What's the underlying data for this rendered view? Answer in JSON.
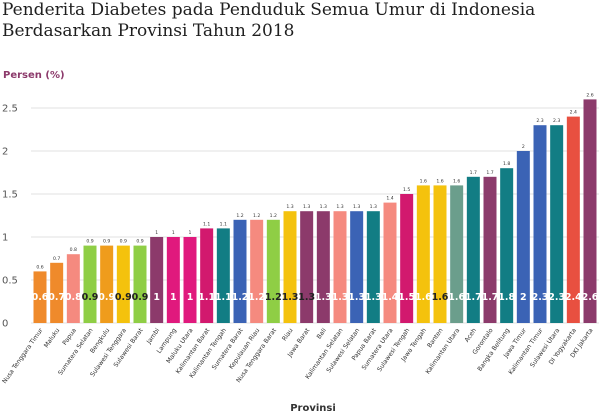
{
  "title": {
    "line1": "Penderita Diabetes pada Penduduk Semua Umur di Indonesia",
    "line2": "Berdasarkan Provinsi Tahun 2018"
  },
  "colors": {
    "accent": "#8c3a6b",
    "grid": "#e2e2e2"
  },
  "chart_data": {
    "type": "bar",
    "ylabel": "Persen (%)",
    "xlabel": "Provinsi",
    "ylim": [
      0,
      2.7
    ],
    "yticks": [
      0,
      0.5,
      1,
      1.5,
      2,
      2.5
    ],
    "ytick_labels": [
      "0",
      "0.5",
      "1",
      "1.5",
      "2",
      "2.5"
    ],
    "grid": true,
    "categories": [
      "Nusa Tenggara Timur",
      "Maluku",
      "Papua",
      "Sumatera Selatan",
      "Bengkulu",
      "Sulawesi Tenggara",
      "Sulawesi Barat",
      "Jambi",
      "Lampung",
      "Maluku Utara",
      "Kalimantan Barat",
      "Kalimantan Tengah",
      "Sumatera Barat",
      "Kepulauan Riau",
      "Nusa Tenggara Barat",
      "Riau",
      "Jawa Barat",
      "Bali",
      "Kalimantan Selatan",
      "Sulawesi Selatan",
      "Papua Barat",
      "Sumatera Utara",
      "Sulawesi Tengah",
      "Jawa Tengah",
      "Banten",
      "Kalimantan Utara",
      "Aceh",
      "Gorontalo",
      "Bangka Belitung",
      "Jawa Timur",
      "Kalimantan Timur",
      "Sulawesi Utara",
      "DI Yogyakarta",
      "DKI Jakarta"
    ],
    "values": [
      0.6,
      0.7,
      0.8,
      0.9,
      0.9,
      0.9,
      0.9,
      1,
      1,
      1,
      1.1,
      1.1,
      1.2,
      1.2,
      1.2,
      1.3,
      1.3,
      1.3,
      1.3,
      1.3,
      1.3,
      1.4,
      1.5,
      1.6,
      1.6,
      1.6,
      1.7,
      1.7,
      1.8,
      2,
      2.3,
      2.3,
      2.4,
      2.6
    ],
    "colors": [
      "#ef8a2b",
      "#ef8a2b",
      "#f58a7f",
      "#8fce45",
      "#ef9c1c",
      "#f4c20d",
      "#8fce45",
      "#8c3a6b",
      "#e0197d",
      "#e0197d",
      "#d2196e",
      "#127d84",
      "#3b63b5",
      "#f58a7f",
      "#8fce45",
      "#f4c20d",
      "#8c3a6b",
      "#8c3a6b",
      "#f58a7f",
      "#3b63b5",
      "#127d84",
      "#f58a7f",
      "#d2196e",
      "#f4c20d",
      "#f4c20d",
      "#6b9e8c",
      "#127d84",
      "#8c3a6b",
      "#127d84",
      "#3b63b5",
      "#3b63b5",
      "#127d84",
      "#e85040",
      "#8c3a6b"
    ],
    "labels_top": [
      "0.6",
      "0.7",
      "0.8",
      "0.9",
      "0.9",
      "0.9",
      "0.9",
      "1",
      "1",
      "1",
      "1.1",
      "1.1",
      "1.2",
      "1.2",
      "1.2",
      "1.3",
      "1.3",
      "1.3",
      "1.3",
      "1.3",
      "1.3",
      "1.4",
      "1.5",
      "1.6",
      "1.6",
      "1.6",
      "1.7",
      "1.7",
      "1.8",
      "2",
      "2.3",
      "2.3",
      "2.4",
      "2.6"
    ],
    "labels_inside": [
      "0.6",
      "0.7",
      "0.8",
      "0.9",
      "0.9",
      "0.9",
      "0.9",
      "1",
      "1",
      "1",
      "1.1",
      "1.1",
      "1.2",
      "1.2",
      "1.2",
      "1.3",
      "1.3",
      "1.3",
      "1.3",
      "1.3",
      "1.3",
      "1.4",
      "1.5",
      "1.6",
      "1.6",
      "1.6",
      "1.7",
      "1.7",
      "1.8",
      "2",
      "2.3",
      "2.3",
      "2.4",
      "2.6"
    ],
    "inside_label_dark": [
      false,
      false,
      false,
      true,
      false,
      true,
      true,
      false,
      false,
      false,
      false,
      false,
      false,
      false,
      true,
      true,
      true,
      false,
      false,
      false,
      false,
      false,
      false,
      false,
      true,
      false,
      false,
      false,
      false,
      false,
      false,
      false,
      false,
      false
    ]
  }
}
